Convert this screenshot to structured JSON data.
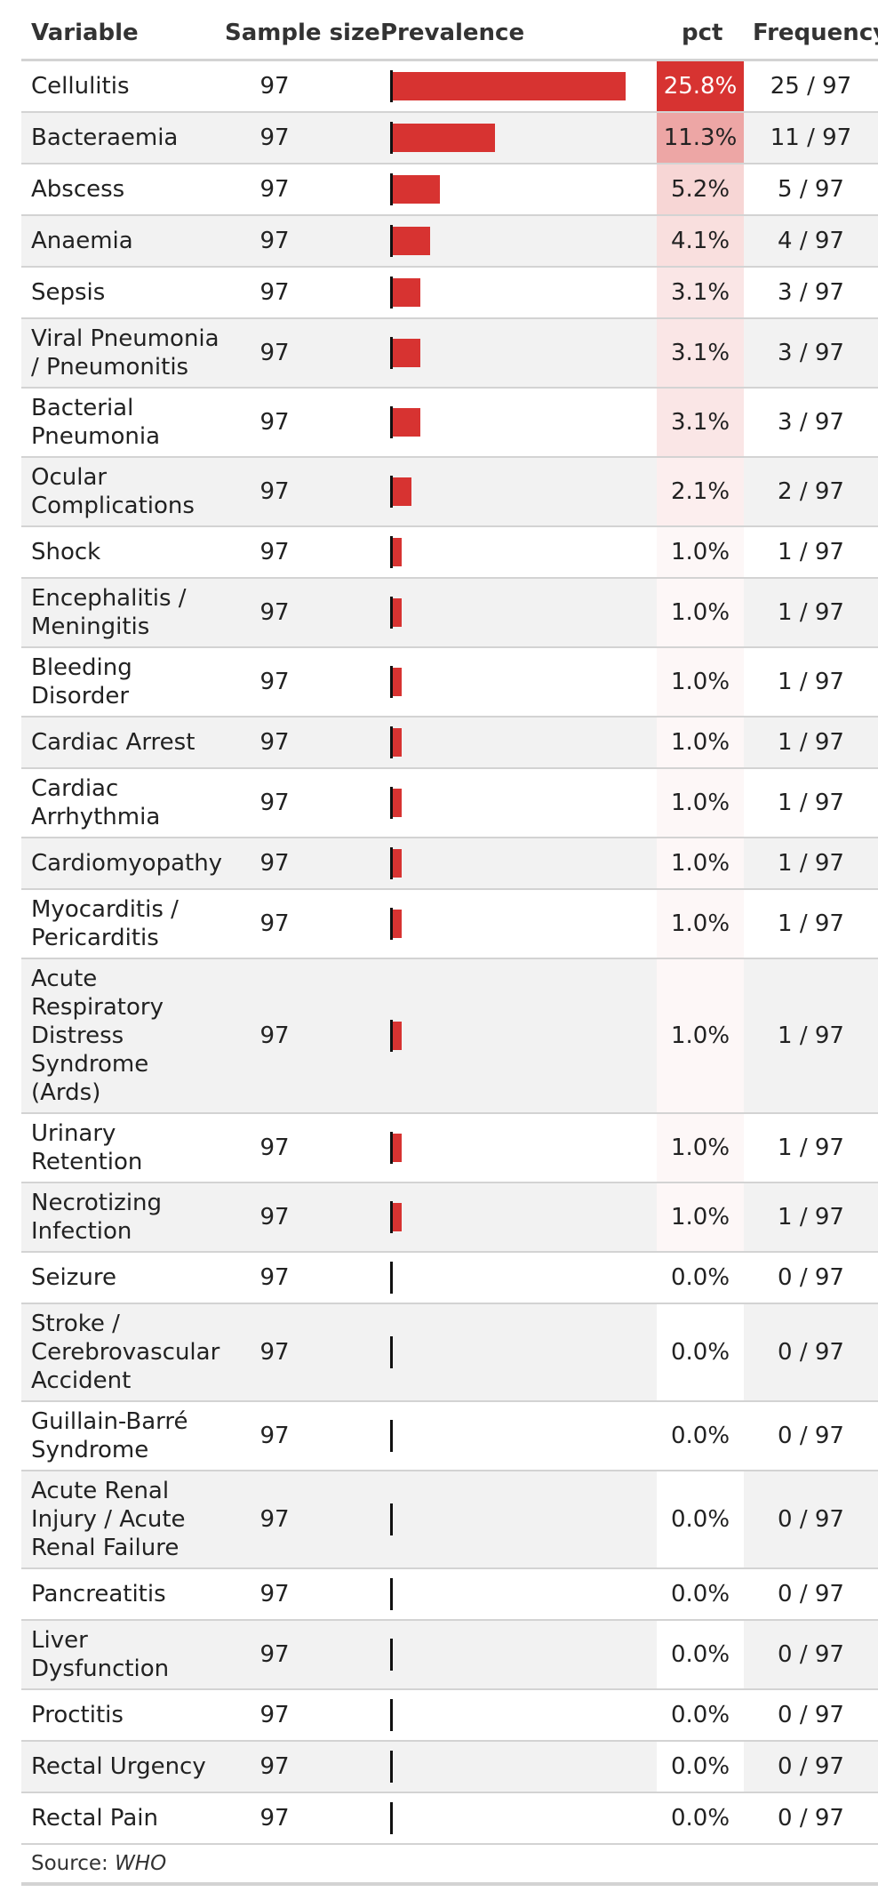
{
  "colors": {
    "bar": "#d73331",
    "pct_max": "#d73331",
    "pct_min": "#ffffff",
    "row_alt": "#f2f2f2",
    "rule": "#d3d3d3"
  },
  "header": {
    "variable": "Variable",
    "sample_size": "Sample size",
    "prevalence": "Prevalence",
    "pct": "pct",
    "frequency": "Frequency"
  },
  "footer": {
    "source_label": "Source:",
    "source_value": "WHO"
  },
  "chart_data": {
    "type": "table",
    "columns": [
      "Variable",
      "Sample size",
      "Prevalence",
      "pct",
      "Frequency"
    ],
    "rows": [
      {
        "variable": "Cellulitis",
        "n": "97",
        "pct": 25.8,
        "pct_label": "25.8%",
        "freq": "25 / 97"
      },
      {
        "variable": "Bacteraemia",
        "n": "97",
        "pct": 11.3,
        "pct_label": "11.3%",
        "freq": "11 / 97"
      },
      {
        "variable": "Abscess",
        "n": "97",
        "pct": 5.2,
        "pct_label": "5.2%",
        "freq": "5 / 97"
      },
      {
        "variable": "Anaemia",
        "n": "97",
        "pct": 4.1,
        "pct_label": "4.1%",
        "freq": "4 / 97"
      },
      {
        "variable": "Sepsis",
        "n": "97",
        "pct": 3.1,
        "pct_label": "3.1%",
        "freq": "3 / 97"
      },
      {
        "variable": "Viral Pneumonia / Pneumonitis",
        "n": "97",
        "pct": 3.1,
        "pct_label": "3.1%",
        "freq": "3 / 97"
      },
      {
        "variable": "Bacterial Pneumonia",
        "n": "97",
        "pct": 3.1,
        "pct_label": "3.1%",
        "freq": "3 / 97"
      },
      {
        "variable": "Ocular Complications",
        "n": "97",
        "pct": 2.1,
        "pct_label": "2.1%",
        "freq": "2 / 97"
      },
      {
        "variable": "Shock",
        "n": "97",
        "pct": 1.0,
        "pct_label": "1.0%",
        "freq": "1 / 97"
      },
      {
        "variable": "Encephalitis / Meningitis",
        "n": "97",
        "pct": 1.0,
        "pct_label": "1.0%",
        "freq": "1 / 97"
      },
      {
        "variable": "Bleeding Disorder",
        "n": "97",
        "pct": 1.0,
        "pct_label": "1.0%",
        "freq": "1 / 97"
      },
      {
        "variable": "Cardiac Arrest",
        "n": "97",
        "pct": 1.0,
        "pct_label": "1.0%",
        "freq": "1 / 97"
      },
      {
        "variable": "Cardiac Arrhythmia",
        "n": "97",
        "pct": 1.0,
        "pct_label": "1.0%",
        "freq": "1 / 97"
      },
      {
        "variable": "Cardiomyopathy",
        "n": "97",
        "pct": 1.0,
        "pct_label": "1.0%",
        "freq": "1 / 97"
      },
      {
        "variable": "Myocarditis / Pericarditis",
        "n": "97",
        "pct": 1.0,
        "pct_label": "1.0%",
        "freq": "1 / 97"
      },
      {
        "variable": "Acute Respiratory Distress Syndrome (Ards)",
        "n": "97",
        "pct": 1.0,
        "pct_label": "1.0%",
        "freq": "1 / 97"
      },
      {
        "variable": "Urinary Retention",
        "n": "97",
        "pct": 1.0,
        "pct_label": "1.0%",
        "freq": "1 / 97"
      },
      {
        "variable": "Necrotizing Infection",
        "n": "97",
        "pct": 1.0,
        "pct_label": "1.0%",
        "freq": "1 / 97"
      },
      {
        "variable": "Seizure",
        "n": "97",
        "pct": 0.0,
        "pct_label": "0.0%",
        "freq": "0 / 97"
      },
      {
        "variable": "Stroke / Cerebrovascular Accident",
        "n": "97",
        "pct": 0.0,
        "pct_label": "0.0%",
        "freq": "0 / 97"
      },
      {
        "variable": "Guillain-Barré Syndrome",
        "n": "97",
        "pct": 0.0,
        "pct_label": "0.0%",
        "freq": "0 / 97"
      },
      {
        "variable": "Acute Renal Injury / Acute Renal Failure",
        "n": "97",
        "pct": 0.0,
        "pct_label": "0.0%",
        "freq": "0 / 97"
      },
      {
        "variable": "Pancreatitis",
        "n": "97",
        "pct": 0.0,
        "pct_label": "0.0%",
        "freq": "0 / 97"
      },
      {
        "variable": "Liver Dysfunction",
        "n": "97",
        "pct": 0.0,
        "pct_label": "0.0%",
        "freq": "0 / 97"
      },
      {
        "variable": "Proctitis",
        "n": "97",
        "pct": 0.0,
        "pct_label": "0.0%",
        "freq": "0 / 97"
      },
      {
        "variable": "Rectal Urgency",
        "n": "97",
        "pct": 0.0,
        "pct_label": "0.0%",
        "freq": "0 / 97"
      },
      {
        "variable": "Rectal Pain",
        "n": "97",
        "pct": 0.0,
        "pct_label": "0.0%",
        "freq": "0 / 97"
      }
    ]
  }
}
